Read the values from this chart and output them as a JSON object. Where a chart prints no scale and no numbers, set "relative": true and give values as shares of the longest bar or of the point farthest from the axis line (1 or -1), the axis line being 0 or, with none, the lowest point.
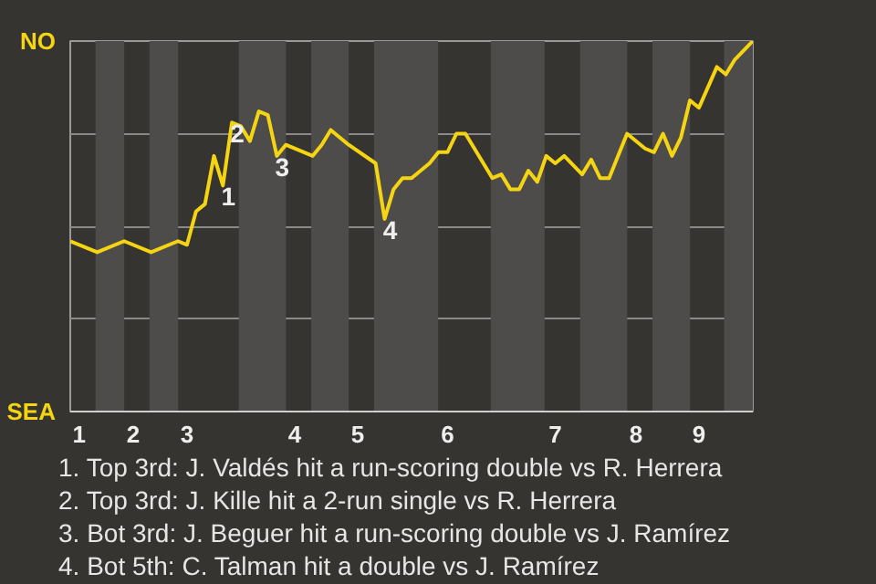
{
  "chart_data": {
    "type": "line",
    "relative": true,
    "grid": "y",
    "line_style": "solid",
    "categories": [
      null,
      "1",
      null,
      null,
      null,
      null,
      null,
      "2",
      null,
      null,
      null,
      null,
      null,
      "3",
      null,
      null,
      null,
      null,
      null,
      null,
      null,
      null,
      null,
      null,
      null,
      "4",
      null,
      null,
      null,
      null,
      null,
      null,
      "5",
      null,
      null,
      null,
      null,
      null,
      null,
      null,
      null,
      null,
      "6",
      null,
      null,
      null,
      null,
      null,
      null,
      null,
      null,
      null,
      null,
      null,
      "7",
      null,
      null,
      null,
      null,
      null,
      null,
      null,
      null,
      "8",
      null,
      null,
      null,
      null,
      null,
      null,
      "9",
      null,
      null,
      null,
      null,
      null,
      null
    ],
    "series": [
      {
        "color": "#f5d412",
        "values": [
          0.46,
          null,
          null,
          0.43,
          null,
          null,
          0.46,
          null,
          null,
          0.43,
          null,
          null,
          0.46,
          0.45,
          0.54,
          0.56,
          0.69,
          0.61,
          0.78,
          0.77,
          0.73,
          0.81,
          0.8,
          0.69,
          0.72,
          null,
          null,
          0.69,
          0.72,
          0.76,
          null,
          0.72,
          null,
          null,
          0.67,
          0.52,
          0.6,
          0.63,
          0.63,
          null,
          0.67,
          0.7,
          0.7,
          0.75,
          0.75,
          null,
          null,
          0.63,
          0.64,
          0.6,
          0.6,
          0.65,
          0.62,
          0.69,
          0.67,
          0.69,
          null,
          0.64,
          0.68,
          0.63,
          0.63,
          0.69,
          0.75,
          null,
          0.71,
          0.7,
          0.75,
          0.69,
          0.74,
          0.84,
          0.82,
          null,
          0.93,
          0.91,
          0.95,
          null,
          1
        ]
      }
    ],
    "annotations": [
      "NO",
      "SEA",
      {
        "text": "1",
        "y": 0.61
      },
      {
        "text": "2",
        "y": 0.78
      },
      {
        "text": "3",
        "y": 0.69
      },
      {
        "text": "4",
        "y": 0.52
      },
      "1. Top 3rd: J. Valdés hit a run-scoring double vs R. Herrera",
      "2. Top 3rd: J. Kille hit a 2-run single vs R. Herrera",
      "3. Bot 3rd: J. Beguer hit a run-scoring double vs J. Ramírez",
      "4. Bot 5th: C. Talman hit a double vs J. Ramírez"
    ]
  }
}
